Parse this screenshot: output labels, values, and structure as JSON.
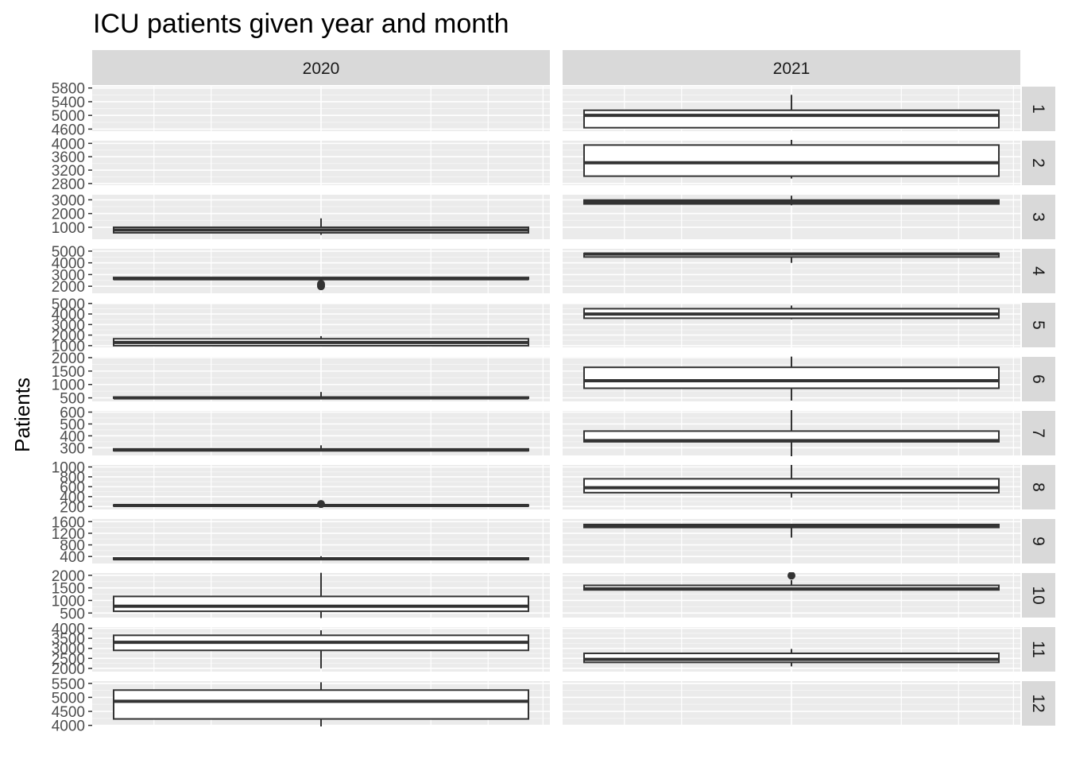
{
  "chart_data": {
    "type": "boxplot",
    "title": "ICU patients given year and month",
    "xlabel": "",
    "ylabel": "Patients",
    "facet_columns": [
      "2020",
      "2021"
    ],
    "facet_rows": [
      "1",
      "2",
      "3",
      "4",
      "5",
      "6",
      "7",
      "8",
      "9",
      "10",
      "11",
      "12"
    ],
    "grid": true,
    "rows": [
      {
        "label": "1",
        "ylim": [
          4540,
          5840
        ],
        "ticks": [
          4600,
          5000,
          5400,
          5800
        ],
        "boxes": [
          null,
          {
            "lower": 4620,
            "q1": 4640,
            "median": 5000,
            "q3": 5150,
            "upper": 5600,
            "outliers": []
          }
        ]
      },
      {
        "label": "2",
        "ylim": [
          2750,
          4080
        ],
        "ticks": [
          2800,
          3200,
          3600,
          4000
        ],
        "boxes": [
          null,
          {
            "lower": 2950,
            "q1": 3020,
            "median": 3420,
            "q3": 3950,
            "upper": 4200,
            "outliers": []
          }
        ]
      },
      {
        "label": "3",
        "ylim": [
          130,
          3370
        ],
        "ticks": [
          1000,
          2000,
          3000
        ],
        "boxes": [
          {
            "lower": 450,
            "q1": 600,
            "median": 800,
            "q3": 1000,
            "upper": 1650,
            "outliers": []
          },
          {
            "lower": 2600,
            "q1": 2700,
            "median": 2830,
            "q3": 2980,
            "upper": 3300,
            "outliers": []
          }
        ]
      },
      {
        "label": "4",
        "ylim": [
          1400,
          5200
        ],
        "ticks": [
          2000,
          3000,
          4000,
          5000
        ],
        "boxes": [
          {
            "lower": 2580,
            "q1": 2600,
            "median": 2640,
            "q3": 2750,
            "upper": 2780,
            "outliers": [
              2000,
              2100,
              2200
            ]
          },
          {
            "lower": 4000,
            "q1": 4500,
            "median": 4750,
            "q3": 4800,
            "upper": 4800,
            "outliers": []
          }
        ]
      },
      {
        "label": "5",
        "ylim": [
          840,
          5060
        ],
        "ticks": [
          1000,
          2000,
          3000,
          4000,
          5000
        ],
        "boxes": [
          {
            "lower": 1000,
            "q1": 1000,
            "median": 1300,
            "q3": 1650,
            "upper": 1900,
            "outliers": []
          },
          {
            "lower": 3500,
            "q1": 3600,
            "median": 4000,
            "q3": 4500,
            "upper": 4800,
            "outliers": []
          }
        ]
      },
      {
        "label": "6",
        "ylim": [
          370,
          2030
        ],
        "ticks": [
          500,
          1000,
          1500,
          2000
        ],
        "boxes": [
          {
            "lower": 480,
            "q1": 490,
            "median": 500,
            "q3": 530,
            "upper": 720,
            "outliers": []
          },
          {
            "lower": 400,
            "q1": 860,
            "median": 1140,
            "q3": 1640,
            "upper": 2040,
            "outliers": []
          }
        ]
      },
      {
        "label": "7",
        "ylim": [
          235,
          610
        ],
        "ticks": [
          300,
          400,
          500,
          600
        ],
        "boxes": [
          {
            "lower": 270,
            "q1": 275,
            "median": 280,
            "q3": 290,
            "upper": 320,
            "outliers": []
          },
          {
            "lower": 220,
            "q1": 350,
            "median": 360,
            "q3": 440,
            "upper": 620,
            "outliers": []
          }
        ]
      },
      {
        "label": "8",
        "ylim": [
          140,
          1040
        ],
        "ticks": [
          200,
          400,
          600,
          800,
          1000
        ],
        "boxes": [
          {
            "lower": 200,
            "q1": 210,
            "median": 220,
            "q3": 230,
            "upper": 230,
            "outliers": [
              250
            ]
          },
          {
            "lower": 380,
            "q1": 480,
            "median": 580,
            "q3": 760,
            "upper": 1040,
            "outliers": []
          }
        ]
      },
      {
        "label": "9",
        "ylim": [
          160,
          1690
        ],
        "ticks": [
          400,
          800,
          1200,
          1600
        ],
        "boxes": [
          {
            "lower": 290,
            "q1": 300,
            "median": 320,
            "q3": 350,
            "upper": 410,
            "outliers": []
          },
          {
            "lower": 1050,
            "q1": 1400,
            "median": 1460,
            "q3": 1500,
            "upper": 1500,
            "outliers": []
          }
        ]
      },
      {
        "label": "10",
        "ylim": [
          320,
          2090
        ],
        "ticks": [
          500,
          1000,
          1500,
          2000
        ],
        "boxes": [
          {
            "lower": 300,
            "q1": 570,
            "median": 770,
            "q3": 1160,
            "upper": 2100,
            "outliers": []
          },
          {
            "lower": 1420,
            "q1": 1420,
            "median": 1460,
            "q3": 1600,
            "upper": 1810,
            "outliers": [
              1990
            ]
          }
        ]
      },
      {
        "label": "11",
        "ylim": [
          1840,
          4060
        ],
        "ticks": [
          2000,
          2500,
          3000,
          3500,
          4000
        ],
        "boxes": [
          {
            "lower": 2000,
            "q1": 2900,
            "median": 3300,
            "q3": 3650,
            "upper": 3900,
            "outliers": []
          },
          {
            "lower": 2100,
            "q1": 2300,
            "median": 2450,
            "q3": 2750,
            "upper": 2970,
            "outliers": []
          }
        ]
      },
      {
        "label": "12",
        "ylim": [
          3990,
          5580
        ],
        "ticks": [
          4000,
          4500,
          5000,
          5500
        ],
        "boxes": [
          {
            "lower": 3950,
            "q1": 4230,
            "median": 4860,
            "q3": 5260,
            "upper": 5540,
            "outliers": []
          },
          null
        ]
      }
    ]
  }
}
